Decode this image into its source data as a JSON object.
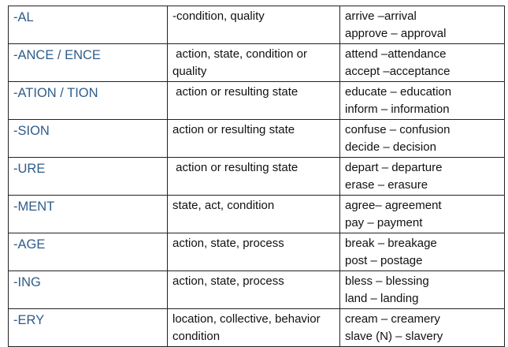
{
  "suffix_color": "#2e5c8a",
  "rows": [
    {
      "suffix": "-AL",
      "meaning": "-condition, quality",
      "examples": [
        "arrive –arrival",
        "approve – approval"
      ]
    },
    {
      "suffix": "-ANCE / ENCE",
      "meaning": " action, state, condition or quality",
      "examples": [
        "attend –attendance",
        "accept –acceptance"
      ]
    },
    {
      "suffix": "-ATION / TION",
      "meaning": " action or resulting state",
      "examples": [
        "educate – education",
        "inform – information"
      ]
    },
    {
      "suffix": "-SION",
      "meaning": "action or resulting state",
      "examples": [
        "confuse – confusion",
        "decide – decision"
      ]
    },
    {
      "suffix": "-URE",
      "meaning": " action or resulting state",
      "examples": [
        "depart – departure",
        "erase – erasure"
      ]
    },
    {
      "suffix": "-MENT",
      "meaning": "state, act, condition",
      "examples": [
        "agree– agreement",
        "pay – payment"
      ]
    },
    {
      "suffix": "-AGE",
      "meaning": "action, state, process",
      "examples": [
        "break – breakage",
        "post – postage"
      ]
    },
    {
      "suffix": "-ING",
      "meaning": "action, state, process",
      "examples": [
        "bless – blessing",
        "land – landing"
      ]
    },
    {
      "suffix": "-ERY",
      "meaning": "location, collective, behavior condition",
      "examples": [
        "cream – creamery",
        "slave (N) – slavery"
      ]
    }
  ]
}
